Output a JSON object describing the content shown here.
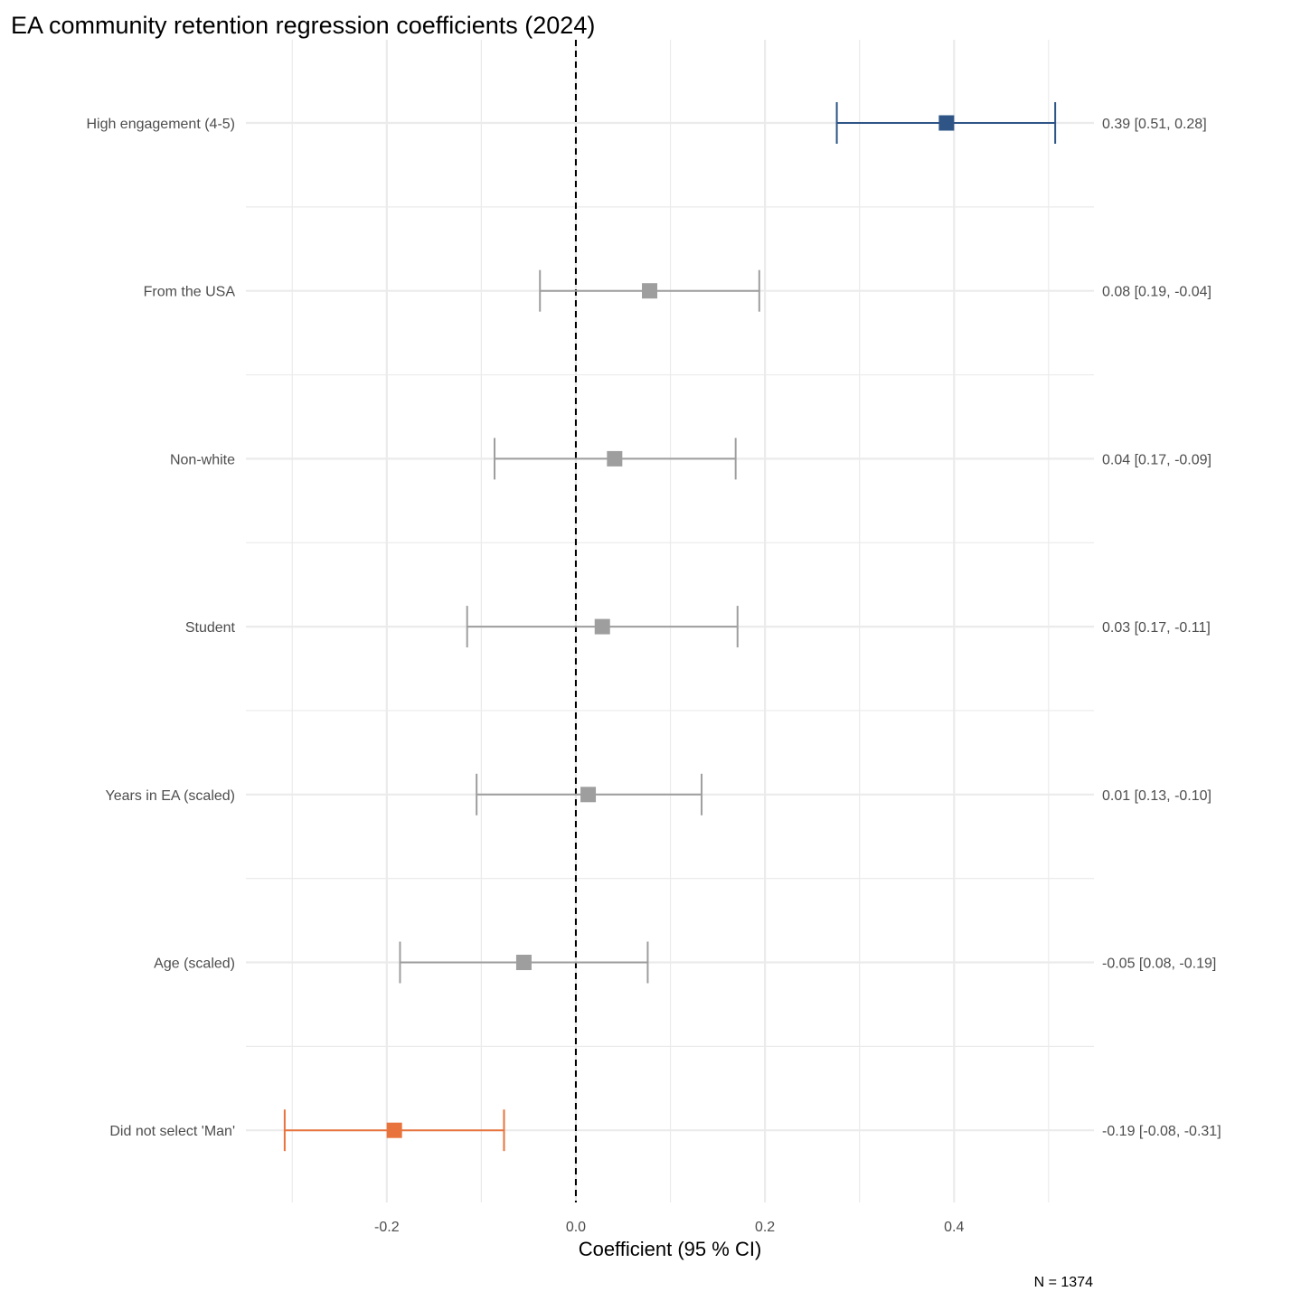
{
  "chart_data": {
    "type": "forest",
    "title": "EA community retention regression coefficients (2024)",
    "xlabel": "Coefficient (95 % CI)",
    "ylabel": "",
    "caption": "N = 1374",
    "xlim": [
      -0.349,
      0.548
    ],
    "x_ticks": [
      -0.2,
      0.0,
      0.2,
      0.4
    ],
    "x_tick_labels": [
      "-0.2",
      "0.0",
      "0.2",
      "0.4"
    ],
    "x_minor_ticks": [
      -0.3,
      -0.1,
      0.1,
      0.3,
      0.5
    ],
    "reference_line": 0,
    "grid": true,
    "colors": {
      "positive_significant": "#2e5586",
      "negative_significant": "#e8733c",
      "not_significant": "#9e9e9e",
      "grid": "#ebebeb"
    },
    "rows": [
      {
        "label": "High engagement (4-5)",
        "estimate": 0.392,
        "ci_low": 0.276,
        "ci_high": 0.507,
        "annotation": "0.39 [0.51, 0.28]",
        "group": "positive_significant"
      },
      {
        "label": "From the USA",
        "estimate": 0.078,
        "ci_low": -0.038,
        "ci_high": 0.194,
        "annotation": "0.08 [0.19, -0.04]",
        "group": "not_significant"
      },
      {
        "label": "Non-white",
        "estimate": 0.041,
        "ci_low": -0.086,
        "ci_high": 0.169,
        "annotation": "0.04 [0.17, -0.09]",
        "group": "not_significant"
      },
      {
        "label": "Student",
        "estimate": 0.028,
        "ci_low": -0.115,
        "ci_high": 0.171,
        "annotation": "0.03 [0.17, -0.11]",
        "group": "not_significant"
      },
      {
        "label": "Years in EA (scaled)",
        "estimate": 0.013,
        "ci_low": -0.105,
        "ci_high": 0.133,
        "annotation": "0.01 [0.13, -0.10]",
        "group": "not_significant"
      },
      {
        "label": "Age (scaled)",
        "estimate": -0.055,
        "ci_low": -0.186,
        "ci_high": 0.076,
        "annotation": "-0.05 [0.08, -0.19]",
        "group": "not_significant"
      },
      {
        "label": "Did not select 'Man'",
        "estimate": -0.192,
        "ci_low": -0.308,
        "ci_high": -0.076,
        "annotation": "-0.19 [-0.08, -0.31]",
        "group": "negative_significant"
      }
    ]
  }
}
